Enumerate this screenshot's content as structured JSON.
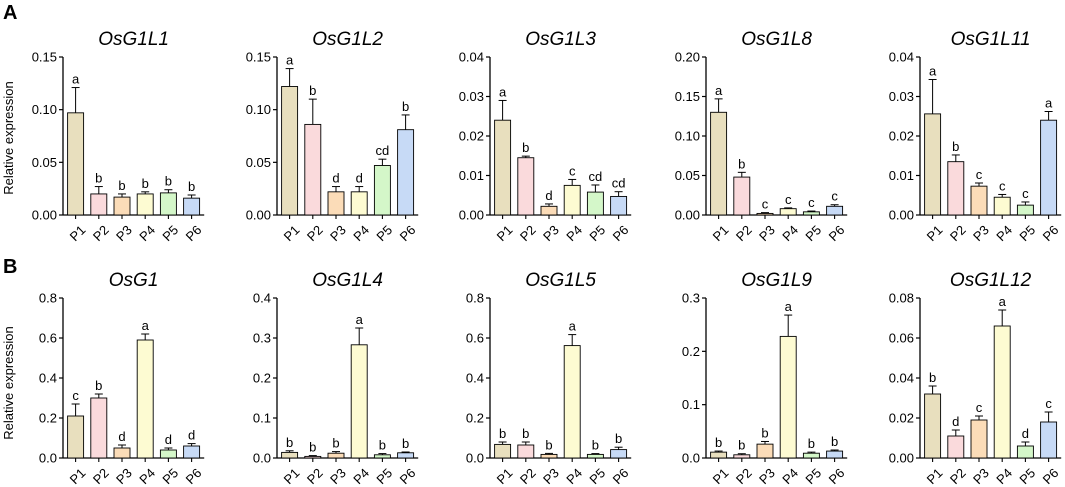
{
  "panel_labels": {
    "A": "A",
    "B": "B"
  },
  "shared_ylabel": "Relative expression",
  "bar_colors": [
    "#e8dfbe",
    "#fadadc",
    "#fbdcb8",
    "#fdfbd2",
    "#d4f7c9",
    "#c7daf6"
  ],
  "chart_data": [
    {
      "type": "bar",
      "panel": "A",
      "title": "OsG1L1",
      "ylabel": "Relative expression",
      "categories": [
        "P1",
        "P2",
        "P3",
        "P4",
        "P5",
        "P6"
      ],
      "values": [
        0.097,
        0.02,
        0.017,
        0.02,
        0.021,
        0.016
      ],
      "errors": [
        0.024,
        0.007,
        0.003,
        0.002,
        0.003,
        0.003
      ],
      "letters": [
        "a",
        "b",
        "b",
        "b",
        "b",
        "b"
      ],
      "ylim": [
        0,
        0.15
      ],
      "yticks": [
        0,
        0.05,
        0.1,
        0.15
      ],
      "ytick_labels": [
        "0.00",
        "0.05",
        "0.10",
        "0.15"
      ]
    },
    {
      "type": "bar",
      "panel": "A",
      "title": "OsG1L2",
      "categories": [
        "P1",
        "P2",
        "P3",
        "P4",
        "P5",
        "P6"
      ],
      "values": [
        0.122,
        0.086,
        0.022,
        0.022,
        0.047,
        0.081
      ],
      "errors": [
        0.017,
        0.024,
        0.005,
        0.005,
        0.006,
        0.014
      ],
      "letters": [
        "a",
        "b",
        "d",
        "d",
        "cd",
        "b"
      ],
      "ylim": [
        0,
        0.15
      ],
      "yticks": [
        0,
        0.05,
        0.1,
        0.15
      ],
      "ytick_labels": [
        "0.00",
        "0.05",
        "0.10",
        "0.15"
      ]
    },
    {
      "type": "bar",
      "panel": "A",
      "title": "OsG1L3",
      "categories": [
        "P1",
        "P2",
        "P3",
        "P4",
        "P5",
        "P6"
      ],
      "values": [
        0.024,
        0.0145,
        0.0022,
        0.0075,
        0.0058,
        0.0047
      ],
      "errors": [
        0.005,
        0.0004,
        0.0006,
        0.0015,
        0.0018,
        0.0012
      ],
      "letters": [
        "a",
        "b",
        "d",
        "c",
        "cd",
        "cd"
      ],
      "ylim": [
        0,
        0.04
      ],
      "yticks": [
        0,
        0.01,
        0.02,
        0.03,
        0.04
      ],
      "ytick_labels": [
        "0.00",
        "0.01",
        "0.02",
        "0.03",
        "0.04"
      ]
    },
    {
      "type": "bar",
      "panel": "A",
      "title": "OsG1L8",
      "categories": [
        "P1",
        "P2",
        "P3",
        "P4",
        "P5",
        "P6"
      ],
      "values": [
        0.13,
        0.048,
        0.002,
        0.008,
        0.004,
        0.011
      ],
      "errors": [
        0.017,
        0.006,
        0.001,
        0.001,
        0.001,
        0.002
      ],
      "letters": [
        "a",
        "b",
        "c",
        "c",
        "c",
        "c"
      ],
      "ylim": [
        0,
        0.2
      ],
      "yticks": [
        0,
        0.05,
        0.1,
        0.15,
        0.2
      ],
      "ytick_labels": [
        "0.00",
        "0.05",
        "0.10",
        "0.15",
        "0.20"
      ]
    },
    {
      "type": "bar",
      "panel": "A",
      "title": "OsG1L11",
      "categories": [
        "P1",
        "P2",
        "P3",
        "P4",
        "P5",
        "P6"
      ],
      "values": [
        0.0256,
        0.0135,
        0.0073,
        0.0045,
        0.0025,
        0.024
      ],
      "errors": [
        0.0087,
        0.0017,
        0.0008,
        0.0007,
        0.0008,
        0.0022
      ],
      "letters": [
        "a",
        "b",
        "c",
        "c",
        "c",
        "a"
      ],
      "ylim": [
        0,
        0.04
      ],
      "yticks": [
        0,
        0.01,
        0.02,
        0.03,
        0.04
      ],
      "ytick_labels": [
        "0.00",
        "0.01",
        "0.02",
        "0.03",
        "0.04"
      ]
    },
    {
      "type": "bar",
      "panel": "B",
      "title": "OsG1",
      "ylabel": "Relative expression",
      "categories": [
        "P1",
        "P2",
        "P3",
        "P4",
        "P5",
        "P6"
      ],
      "values": [
        0.21,
        0.3,
        0.05,
        0.59,
        0.04,
        0.06
      ],
      "errors": [
        0.06,
        0.02,
        0.015,
        0.03,
        0.01,
        0.012
      ],
      "letters": [
        "c",
        "b",
        "d",
        "a",
        "d",
        "d"
      ],
      "ylim": [
        0,
        0.8
      ],
      "yticks": [
        0,
        0.2,
        0.4,
        0.6,
        0.8
      ],
      "ytick_labels": [
        "0.0",
        "0.2",
        "0.4",
        "0.6",
        "0.8"
      ]
    },
    {
      "type": "bar",
      "panel": "B",
      "title": "OsG1L4",
      "categories": [
        "P1",
        "P2",
        "P3",
        "P4",
        "P5",
        "P6"
      ],
      "values": [
        0.014,
        0.004,
        0.012,
        0.283,
        0.008,
        0.013
      ],
      "errors": [
        0.004,
        0.002,
        0.004,
        0.042,
        0.003,
        0.002
      ],
      "letters": [
        "b",
        "b",
        "b",
        "a",
        "b",
        "b"
      ],
      "ylim": [
        0,
        0.4
      ],
      "yticks": [
        0,
        0.1,
        0.2,
        0.3,
        0.4
      ],
      "ytick_labels": [
        "0.0",
        "0.1",
        "0.2",
        "0.3",
        "0.4"
      ]
    },
    {
      "type": "bar",
      "panel": "B",
      "title": "OsG1L5",
      "categories": [
        "P1",
        "P2",
        "P3",
        "P4",
        "P5",
        "P6"
      ],
      "values": [
        0.068,
        0.065,
        0.018,
        0.562,
        0.018,
        0.042
      ],
      "errors": [
        0.012,
        0.015,
        0.005,
        0.055,
        0.004,
        0.012
      ],
      "letters": [
        "b",
        "b",
        "b",
        "a",
        "b",
        "b"
      ],
      "ylim": [
        0,
        0.8
      ],
      "yticks": [
        0,
        0.2,
        0.4,
        0.6,
        0.8
      ],
      "ytick_labels": [
        "0.0",
        "0.2",
        "0.4",
        "0.6",
        "0.8"
      ]
    },
    {
      "type": "bar",
      "panel": "B",
      "title": "OsG1L9",
      "categories": [
        "P1",
        "P2",
        "P3",
        "P4",
        "P5",
        "P6"
      ],
      "values": [
        0.011,
        0.006,
        0.026,
        0.228,
        0.009,
        0.013
      ],
      "errors": [
        0.002,
        0.002,
        0.005,
        0.04,
        0.002,
        0.002
      ],
      "letters": [
        "b",
        "b",
        "b",
        "a",
        "b",
        "b"
      ],
      "ylim": [
        0,
        0.3
      ],
      "yticks": [
        0,
        0.1,
        0.2,
        0.3
      ],
      "ytick_labels": [
        "0.0",
        "0.1",
        "0.2",
        "0.3"
      ]
    },
    {
      "type": "bar",
      "panel": "B",
      "title": "OsG1L12",
      "categories": [
        "P1",
        "P2",
        "P3",
        "P4",
        "P5",
        "P6"
      ],
      "values": [
        0.032,
        0.011,
        0.019,
        0.066,
        0.006,
        0.018
      ],
      "errors": [
        0.004,
        0.003,
        0.002,
        0.008,
        0.002,
        0.005
      ],
      "letters": [
        "b",
        "d",
        "c",
        "a",
        "d",
        "c"
      ],
      "ylim": [
        0,
        0.08
      ],
      "yticks": [
        0,
        0.02,
        0.04,
        0.06,
        0.08
      ],
      "ytick_labels": [
        "0.00",
        "0.02",
        "0.04",
        "0.06",
        "0.08"
      ]
    }
  ]
}
